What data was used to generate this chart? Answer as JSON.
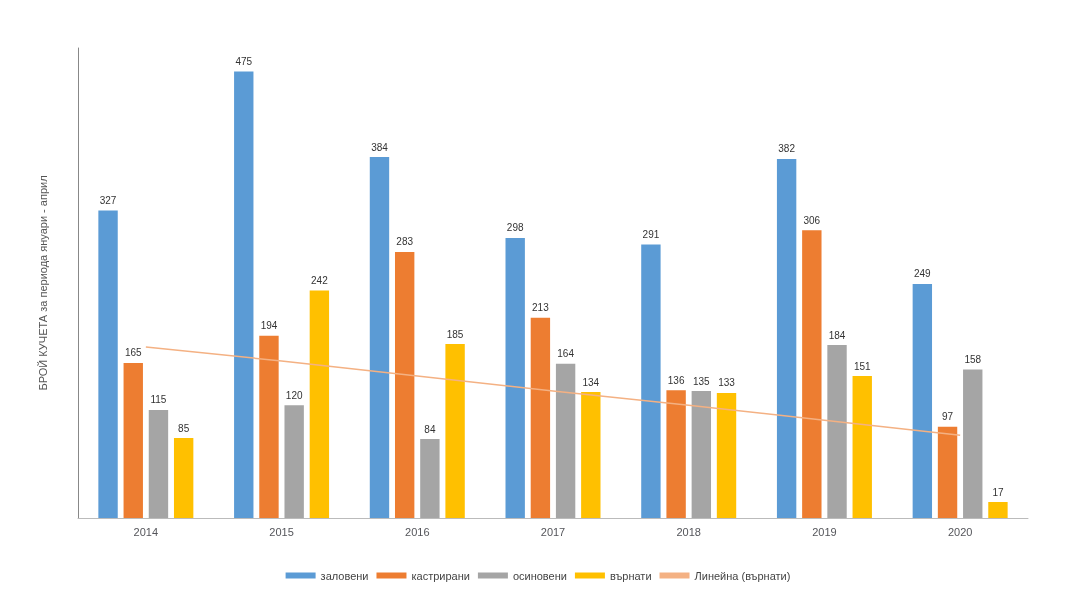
{
  "chart_data": {
    "type": "bar",
    "ylabel": "БРОЙ КУЧЕТА за периода януари - април",
    "categories": [
      "2014",
      "2015",
      "2016",
      "2017",
      "2018",
      "2019",
      "2020"
    ],
    "series": [
      {
        "name": "заловени",
        "color": "#5b9bd5",
        "values": [
          327,
          475,
          384,
          298,
          291,
          382,
          249
        ],
        "value_labels": [
          "327",
          "475",
          "384",
          "298",
          "291",
          "382",
          "249"
        ]
      },
      {
        "name": "кастрирани",
        "color": "#ed7d31",
        "values": [
          165,
          194,
          283,
          213,
          136,
          306,
          97
        ],
        "value_labels": [
          "165",
          "194",
          "283",
          "213",
          "136",
          "306",
          "97"
        ]
      },
      {
        "name": "осиновени",
        "color": "#a5a5a5",
        "values": [
          115,
          120,
          84,
          164,
          135,
          184,
          158
        ],
        "value_labels": [
          "115",
          "120",
          "84",
          "164",
          "135",
          "184",
          "158"
        ]
      },
      {
        "name": "върнати",
        "color": "#ffc000",
        "values": [
          85,
          242,
          185,
          134,
          133,
          151,
          17
        ],
        "value_labels": [
          "85",
          "242",
          "185",
          "134",
          "133",
          "151",
          "17"
        ]
      },
      {
        "name": "Линейна (върнати)",
        "type": "line",
        "color": "#f4b183",
        "values": [
          182,
          167,
          151,
          135,
          120,
          104,
          88
        ],
        "marker": "none"
      }
    ],
    "legend": "bottom",
    "tick_labels": "x",
    "grid": false
  }
}
